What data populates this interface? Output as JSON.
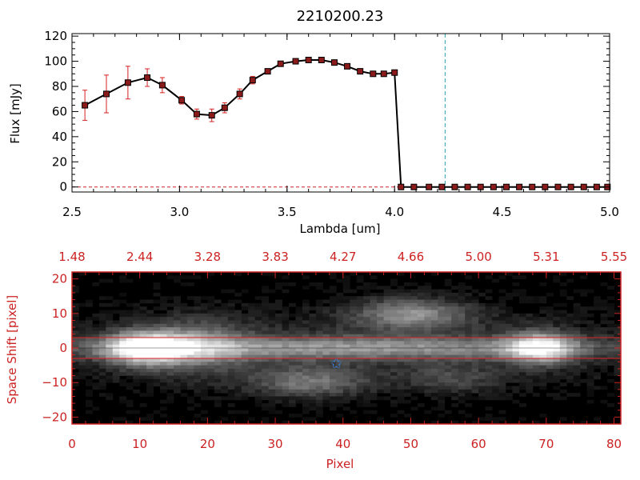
{
  "colors": {
    "axis": "#000000",
    "spectrum_line": "#000000",
    "marker_fill": "#8b1a1a",
    "error_bar": "#d62020",
    "vline": "#29a0b4",
    "panel2_axis": "#cc2222",
    "aperture": "#dd2222",
    "star": "#3a7fd4"
  },
  "chart_data": [
    {
      "type": "line",
      "title": "2210200.23",
      "xlabel": "Lambda [um]",
      "ylabel": "Flux [mJy]",
      "xlim": [
        2.5,
        5.0
      ],
      "ylim": [
        -4,
        122
      ],
      "xticks": [
        2.5,
        3.0,
        3.5,
        4.0,
        4.5,
        5.0
      ],
      "xtick_labels": [
        "2.5",
        "3.0",
        "3.5",
        "4.0",
        "4.5",
        "5.0"
      ],
      "yticks": [
        0,
        20,
        40,
        60,
        80,
        100,
        120
      ],
      "ytick_labels": [
        "0",
        "20",
        "40",
        "60",
        "80",
        "100",
        "120"
      ],
      "vline_x": 4.235,
      "dashed_zero_line": true,
      "series": [
        {
          "x": [
            2.56,
            2.66,
            2.76,
            2.85,
            2.92,
            3.01,
            3.08,
            3.15,
            3.21,
            3.28,
            3.34,
            3.41,
            3.47,
            3.54,
            3.6,
            3.66,
            3.72,
            3.78,
            3.84,
            3.9,
            3.95,
            4.0,
            4.03,
            4.09,
            4.16,
            4.22,
            4.28,
            4.34,
            4.4,
            4.46,
            4.52,
            4.58,
            4.64,
            4.7,
            4.76,
            4.82,
            4.88,
            4.94,
            4.99
          ],
          "y": [
            65,
            74,
            83,
            87,
            81,
            69,
            58,
            57,
            63,
            74,
            85,
            92,
            98,
            100,
            101,
            101,
            99,
            96,
            92,
            90,
            90,
            91,
            0,
            0,
            0,
            0,
            0,
            0,
            0,
            0,
            0,
            0,
            0,
            0,
            0,
            0,
            0,
            0,
            0
          ],
          "err": [
            12,
            15,
            13,
            7,
            6,
            3,
            4,
            5,
            4,
            4,
            3,
            2,
            2,
            2,
            1,
            1,
            1,
            1,
            1,
            1,
            1,
            1,
            0,
            0,
            0,
            0,
            0,
            0,
            0,
            0,
            0,
            0,
            0,
            0,
            0,
            0,
            0,
            0,
            0
          ]
        }
      ]
    },
    {
      "type": "heatmap",
      "xlabel": "Pixel",
      "ylabel": "Space Shift [pixel]",
      "xlim": [
        0,
        81
      ],
      "ylim": [
        -22,
        22
      ],
      "xticks": [
        0,
        10,
        20,
        30,
        40,
        50,
        60,
        70,
        80
      ],
      "xtick_labels": [
        "0",
        "10",
        "20",
        "30",
        "40",
        "50",
        "60",
        "70",
        "80"
      ],
      "yticks": [
        -20,
        -10,
        0,
        10,
        20
      ],
      "ytick_labels": [
        "−20",
        "−10",
        "0",
        "10",
        "20"
      ],
      "top_axis_labels": [
        "1.48",
        "2.44",
        "3.28",
        "3.83",
        "4.27",
        "4.66",
        "5.00",
        "5.31",
        "5.55"
      ],
      "aperture_y": [
        -3,
        3
      ],
      "star_marker": {
        "x": 39,
        "y": -4.5
      },
      "blobs": [
        {
          "x": 11,
          "y": 0,
          "sx": 4.2,
          "sy": 3.4,
          "amp": 0.9
        },
        {
          "x": 19,
          "y": 0.5,
          "sx": 5,
          "sy": 5.5,
          "amp": 0.35
        },
        {
          "x": 69,
          "y": 0,
          "sx": 3.5,
          "sy": 3.2,
          "amp": 0.75
        },
        {
          "x": 50,
          "y": 10,
          "sx": 6,
          "sy": 3.2,
          "amp": 0.5
        },
        {
          "x": 35,
          "y": -10,
          "sx": 6,
          "sy": 3,
          "amp": 0.4
        },
        {
          "x": 40,
          "y": 0,
          "sx": 30,
          "sy": 2.3,
          "amp": 0.45
        },
        {
          "x": 40,
          "y": 0,
          "sx": 40,
          "sy": 8,
          "amp": 0.17
        },
        {
          "x": 56,
          "y": -9,
          "sx": 5,
          "sy": 3,
          "amp": 0.22
        }
      ]
    }
  ]
}
